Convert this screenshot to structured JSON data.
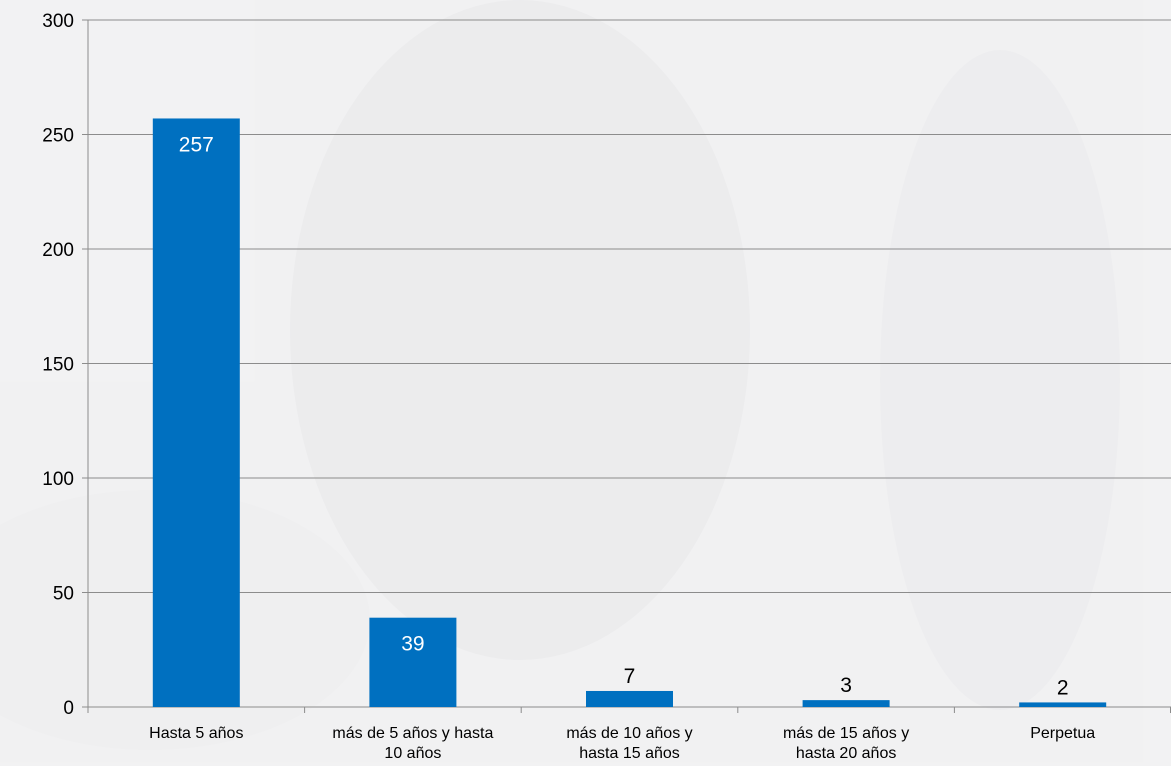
{
  "colors": {
    "bar": "#0070c0",
    "grid": "#8c8c8c",
    "background": "#f3f3f4"
  },
  "chart_data": {
    "type": "bar",
    "title": "",
    "xlabel": "",
    "ylabel": "",
    "categories": [
      [
        "Hasta 5 años"
      ],
      [
        "más de 5 años y hasta",
        "10 años"
      ],
      [
        "más de 10 años y",
        "hasta 15 años"
      ],
      [
        "más de 15 años y",
        "hasta 20 años"
      ],
      [
        "Perpetua"
      ]
    ],
    "values": [
      257,
      39,
      7,
      3,
      2
    ],
    "ylim": [
      0,
      300
    ],
    "yticks": [
      0,
      50,
      100,
      150,
      200,
      250,
      300
    ],
    "grid": true,
    "legend": "none",
    "data_labels": [
      "257",
      "39",
      "7",
      "3",
      "2"
    ]
  }
}
